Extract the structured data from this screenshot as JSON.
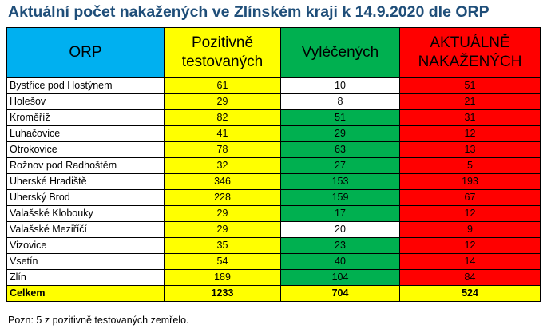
{
  "title": "Aktuální počet nakažených ve Zlínském kraji k 14.9.2020 dle ORP",
  "colors": {
    "title": "#1f4e79",
    "orp_header": "#00b0f0",
    "positive": "#ffff00",
    "recovered": "#00b050",
    "recovered_white": "#ffffff",
    "active": "#ff0000",
    "total": "#ffff00"
  },
  "header": {
    "orp": "ORP",
    "positive_line1": "Pozitivně",
    "positive_line2": "testovaných",
    "recovered": "Vyléčených",
    "active_line1": "AKTUÁLNĚ",
    "active_line2": "NAKAŽENÝCH"
  },
  "rows": [
    {
      "name": "Bystřice pod Hostýnem",
      "positive": "61",
      "recovered": "10",
      "active": "51",
      "recovered_bg": "white"
    },
    {
      "name": "Holešov",
      "positive": "29",
      "recovered": "8",
      "active": "21",
      "recovered_bg": "white"
    },
    {
      "name": "Kroměříž",
      "positive": "82",
      "recovered": "51",
      "active": "31",
      "recovered_bg": "green"
    },
    {
      "name": "Luhačovice",
      "positive": "41",
      "recovered": "29",
      "active": "12",
      "recovered_bg": "green"
    },
    {
      "name": "Otrokovice",
      "positive": "78",
      "recovered": "63",
      "active": "13",
      "recovered_bg": "green"
    },
    {
      "name": "Rožnov pod Radhoštěm",
      "positive": "32",
      "recovered": "27",
      "active": "5",
      "recovered_bg": "green"
    },
    {
      "name": "Uherské Hradiště",
      "positive": "346",
      "recovered": "153",
      "active": "193",
      "recovered_bg": "green"
    },
    {
      "name": "Uherský Brod",
      "positive": "228",
      "recovered": "159",
      "active": "67",
      "recovered_bg": "green"
    },
    {
      "name": "Valašské Klobouky",
      "positive": "29",
      "recovered": "17",
      "active": "12",
      "recovered_bg": "green"
    },
    {
      "name": "Valašské Meziříčí",
      "positive": "29",
      "recovered": "20",
      "active": "9",
      "recovered_bg": "white"
    },
    {
      "name": "Vizovice",
      "positive": "35",
      "recovered": "23",
      "active": "12",
      "recovered_bg": "green"
    },
    {
      "name": "Vsetín",
      "positive": "54",
      "recovered": "40",
      "active": "14",
      "recovered_bg": "green"
    },
    {
      "name": "Zlín",
      "positive": "189",
      "recovered": "104",
      "active": "84",
      "recovered_bg": "green"
    }
  ],
  "total": {
    "name": "Celkem",
    "positive": "1233",
    "recovered": "704",
    "active": "524"
  },
  "note": "Pozn: 5 z pozitivně testovaných zemřelo."
}
